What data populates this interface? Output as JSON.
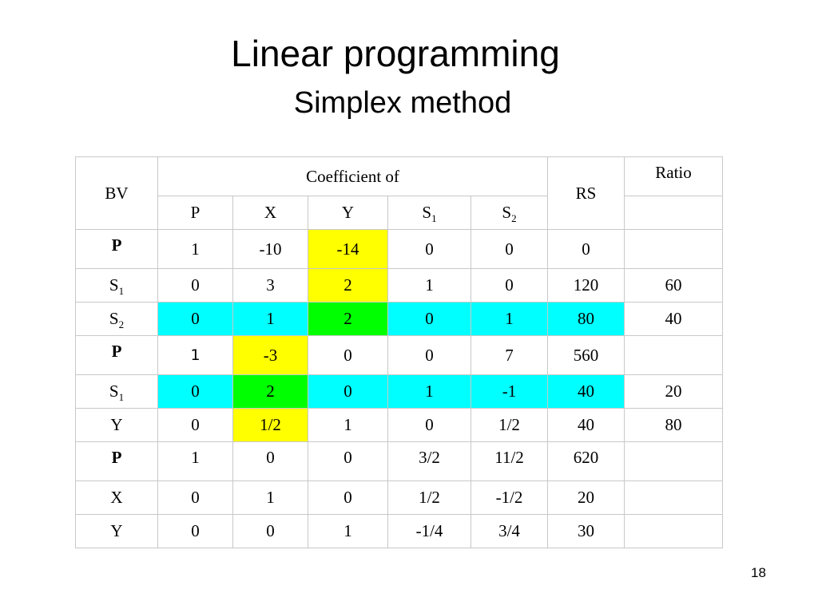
{
  "slide": {
    "title": "Linear programming",
    "subtitle": "Simplex method",
    "page_number": "18"
  },
  "table": {
    "header": {
      "bv": "BV",
      "coefficient_of": "Coefficient of",
      "rs": "RS",
      "ratio": "Ratio",
      "columns": [
        {
          "main": "P",
          "sub": ""
        },
        {
          "main": "X",
          "sub": ""
        },
        {
          "main": "Y",
          "sub": ""
        },
        {
          "main": "S",
          "sub": "1"
        },
        {
          "main": "S",
          "sub": "2"
        }
      ]
    },
    "rows": [
      {
        "bv": "P",
        "bv_sub": "",
        "bold": true,
        "cells": [
          "1",
          "-10",
          "-14",
          "0",
          "0"
        ],
        "rs": "0",
        "ratio": ""
      },
      {
        "bv": "S",
        "bv_sub": "1",
        "bold": false,
        "cells": [
          "0",
          "3",
          "2",
          "1",
          "0"
        ],
        "rs": "120",
        "ratio": "60"
      },
      {
        "bv": "S",
        "bv_sub": "2",
        "bold": false,
        "cells": [
          "0",
          "1",
          "2",
          "0",
          "1"
        ],
        "rs": "80",
        "ratio": "40"
      },
      {
        "bv": "P",
        "bv_sub": "",
        "bold": true,
        "cells": [
          "1",
          "-3",
          "0",
          "0",
          "7"
        ],
        "rs": "560",
        "ratio": ""
      },
      {
        "bv": "S",
        "bv_sub": "1",
        "bold": false,
        "cells": [
          "0",
          "2",
          "0",
          "1",
          "-1"
        ],
        "rs": "40",
        "ratio": "20"
      },
      {
        "bv": "Y",
        "bv_sub": "",
        "bold": false,
        "cells": [
          "0",
          "1/2",
          "1",
          "0",
          "1/2"
        ],
        "rs": "40",
        "ratio": "80"
      },
      {
        "bv": "P",
        "bv_sub": "",
        "bold": true,
        "cells": [
          "1",
          "0",
          "0",
          "3/2",
          "11/2"
        ],
        "rs": "620",
        "ratio": ""
      },
      {
        "bv": "X",
        "bv_sub": "",
        "bold": false,
        "cells": [
          "0",
          "1",
          "0",
          "1/2",
          "-1/2"
        ],
        "rs": "20",
        "ratio": ""
      },
      {
        "bv": "Y",
        "bv_sub": "",
        "bold": false,
        "cells": [
          "0",
          "0",
          "1",
          "-1/4",
          "3/4"
        ],
        "rs": "30",
        "ratio": ""
      }
    ]
  },
  "highlight_colors": {
    "pivot_row": "#00ffff",
    "pivot_column": "#ffff00",
    "pivot_element": "#00ff00"
  }
}
